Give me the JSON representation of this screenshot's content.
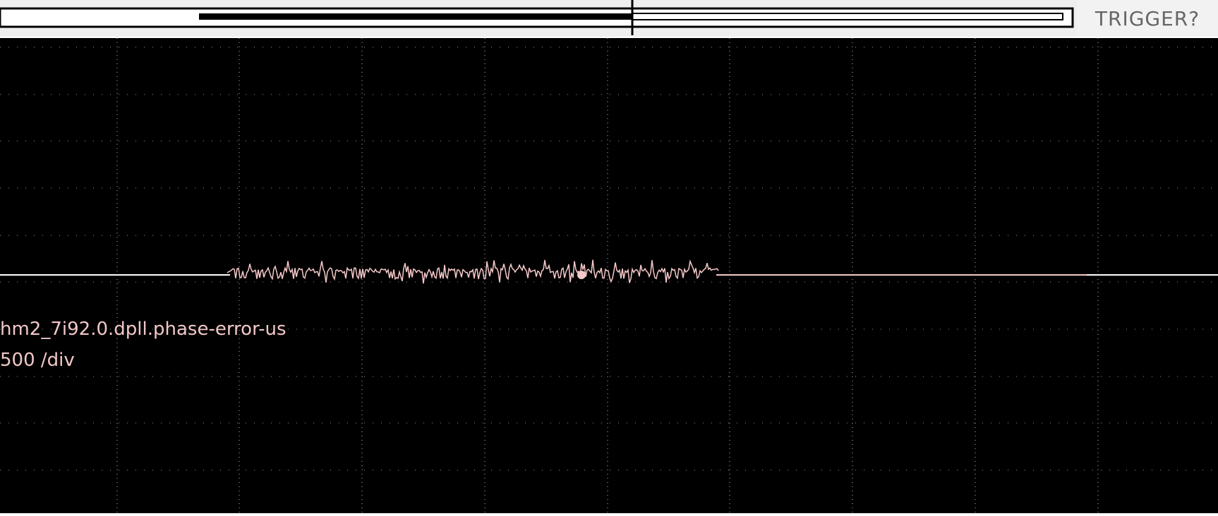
{
  "trigger": {
    "status_text": "TRIGGER?"
  },
  "channel": {
    "name": "hm2_7i92.0.dpll.phase-error-us",
    "scale": "500 /div",
    "color": "#f2c7c7"
  },
  "grid": {
    "h_divisions": 10,
    "v_divisions": 10
  },
  "colors": {
    "trace_flat": "#ffffff",
    "trace_noise": "#f6c9c9",
    "background": "#000000"
  }
}
